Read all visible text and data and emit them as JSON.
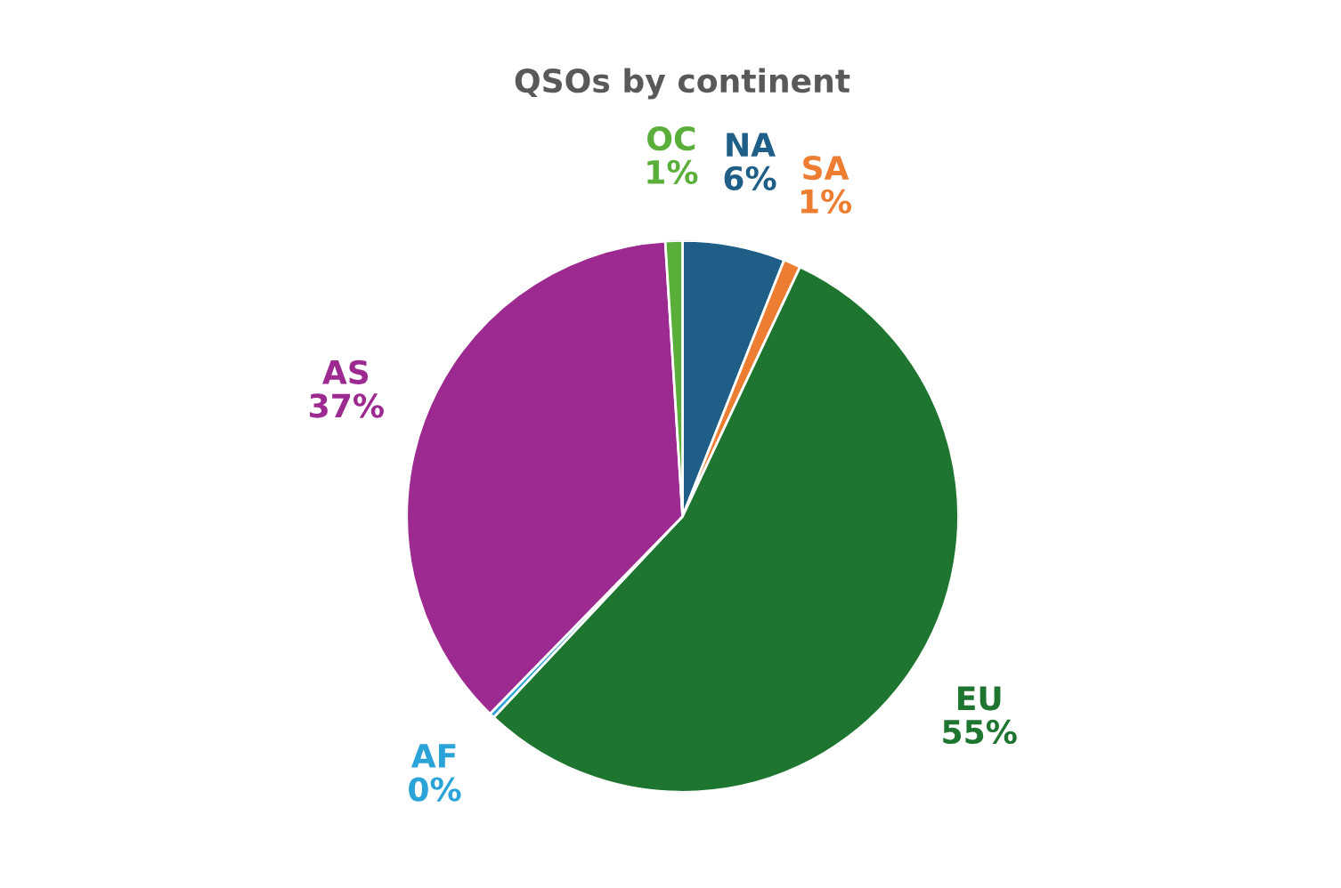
{
  "chart_data": {
    "type": "pie",
    "title": "QSOs by continent",
    "categories": [
      "NA",
      "SA",
      "EU",
      "AF",
      "AS",
      "OC"
    ],
    "values": [
      6,
      1,
      55,
      0.3,
      36.7,
      1
    ],
    "value_labels": [
      "6%",
      "1%",
      "55%",
      "0%",
      "37%",
      "1%"
    ],
    "colors": [
      "#1f5f87",
      "#ed7d31",
      "#1e7530",
      "#2aa3d8",
      "#9c2a90",
      "#5aae3a"
    ]
  }
}
